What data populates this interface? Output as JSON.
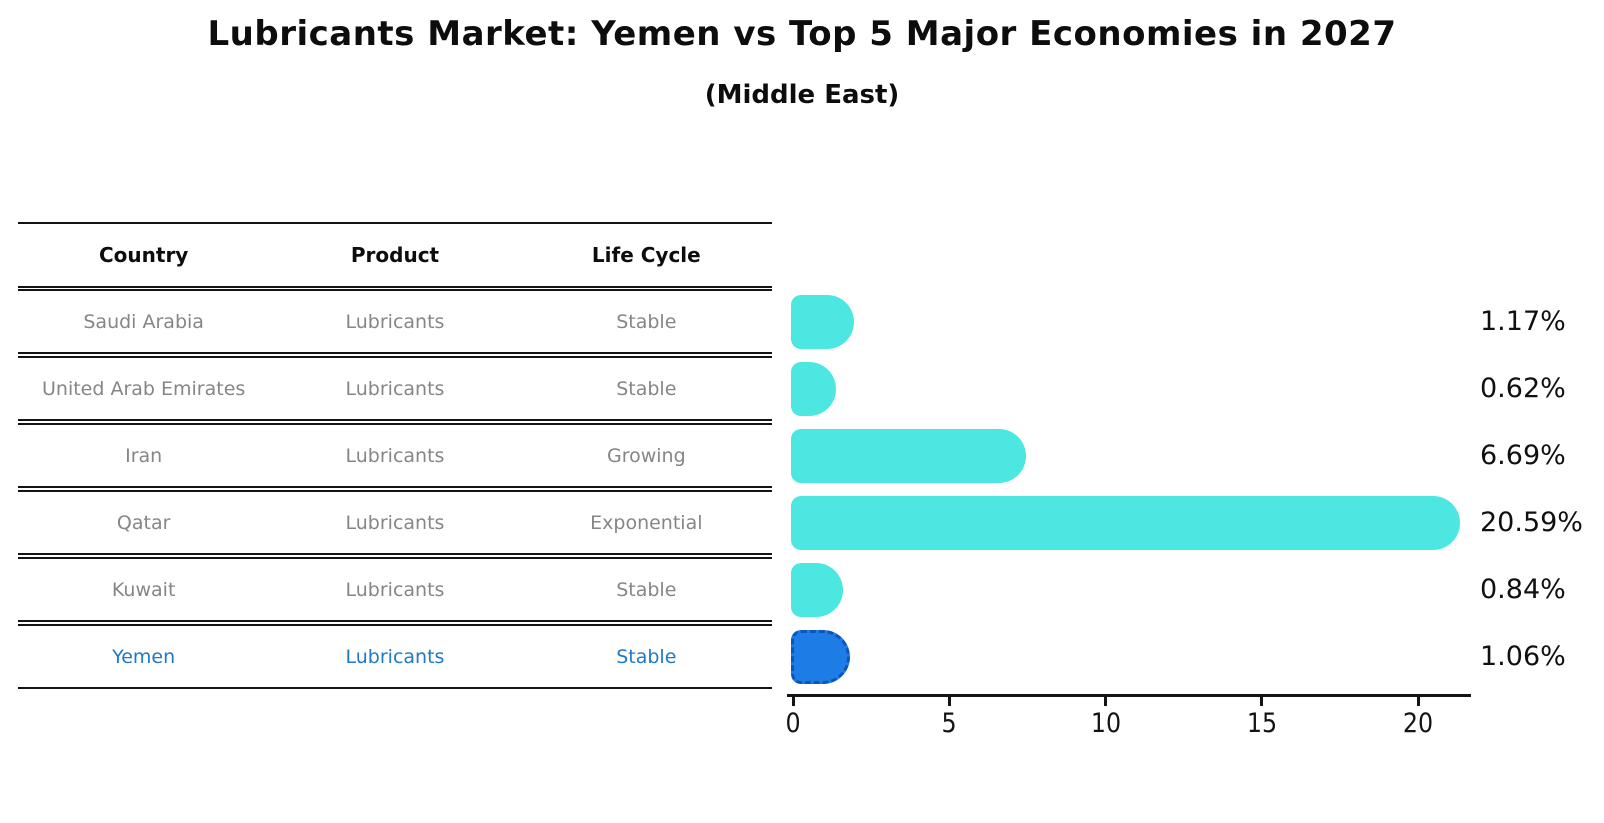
{
  "title": "Lubricants Market: Yemen vs Top 5 Major Economies in 2027",
  "subtitle": "(Middle East)",
  "table": {
    "headers": [
      "Country",
      "Product",
      "Life Cycle"
    ],
    "rows": [
      {
        "country": "Saudi Arabia",
        "product": "Lubricants",
        "life_cycle": "Stable"
      },
      {
        "country": "United Arab Emirates",
        "product": "Lubricants",
        "life_cycle": "Stable"
      },
      {
        "country": "Iran",
        "product": "Lubricants",
        "life_cycle": "Growing"
      },
      {
        "country": "Qatar",
        "product": "Lubricants",
        "life_cycle": "Exponential"
      },
      {
        "country": "Kuwait",
        "product": "Lubricants",
        "life_cycle": "Stable"
      },
      {
        "country": "Yemen",
        "product": "Lubricants",
        "life_cycle": "Stable"
      }
    ]
  },
  "chart_data": {
    "type": "bar",
    "orientation": "horizontal",
    "title": "Lubricants Market: Yemen vs Top 5 Major Economies in 2027",
    "subtitle": "(Middle East)",
    "categories": [
      "Saudi Arabia",
      "United Arab Emirates",
      "Iran",
      "Qatar",
      "Kuwait",
      "Yemen"
    ],
    "values": [
      1.17,
      0.62,
      6.69,
      20.59,
      0.84,
      1.06
    ],
    "value_labels": [
      "1.17%",
      "0.62%",
      "6.69%",
      "20.59%",
      "0.84%",
      "1.06%"
    ],
    "xticks": [
      0,
      5,
      10,
      15,
      20
    ],
    "xtick_labels": [
      "0",
      "5",
      "10",
      "15",
      "20"
    ],
    "xlim": [
      0,
      21.7
    ],
    "xlabel": "",
    "ylabel": "",
    "grid": false,
    "legend": "none",
    "bar_color": "#4DE7E2",
    "highlight_index": 5,
    "highlight_category": "Yemen",
    "highlight_bar_color": "#1E7CE6",
    "highlight_border_color": "#0C56B8",
    "row_text_color": "#868686",
    "highlight_text_color": "#1F78C8",
    "axis_color": "#141414"
  }
}
